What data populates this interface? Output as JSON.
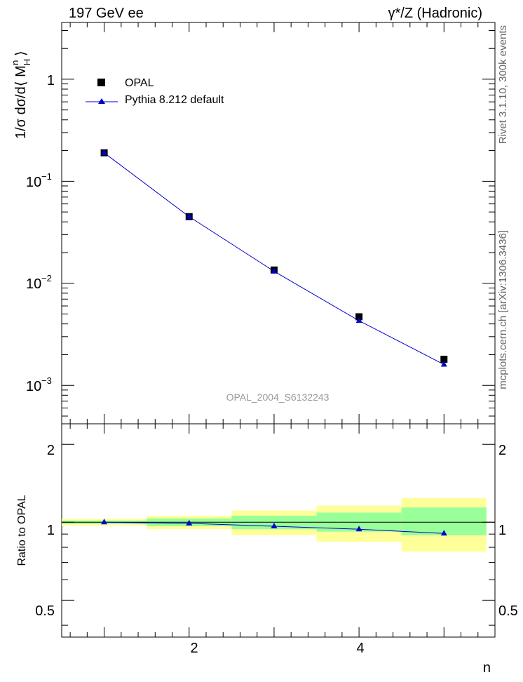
{
  "header": {
    "left": "197 GeV ee",
    "right_prefix": "γ*/Z (Hadronic)"
  },
  "side_labels": {
    "top": "Rivet 3.1.10,  300k events",
    "bottom": "mcplots.cern.ch [arXiv:1306.3436]"
  },
  "watermark": "OPAL_2004_S6132243",
  "legend": [
    {
      "label": "OPAL",
      "marker": "square",
      "color": "#000000"
    },
    {
      "label": "Pythia 8.212 default",
      "marker": "triangle",
      "color": "#0000cc"
    }
  ],
  "main_y_axis": {
    "label": "1/σ dσ/d⟨ M_H^n ⟩",
    "scale": "log",
    "ticks": [
      {
        "base": "10",
        "exp": "−3",
        "value": 0.001
      },
      {
        "base": "10",
        "exp": "−2",
        "value": 0.01
      },
      {
        "base": "10",
        "exp": "−1",
        "value": 0.1
      },
      {
        "base": "1",
        "exp": "",
        "value": 1
      }
    ]
  },
  "ratio_y_axis": {
    "label": "Ratio to OPAL",
    "ticks": [
      "0.5",
      "1",
      "2"
    ]
  },
  "x_axis": {
    "label": "n",
    "ticks": [
      "2",
      "4"
    ]
  },
  "chart_data": [
    {
      "type": "scatter",
      "panel": "main",
      "xlim": [
        0.5,
        5.6
      ],
      "ylim": [
        0.00042,
        3.6
      ],
      "yscale": "log",
      "ylabel": "1/σ dσ/d⟨ M_H^n ⟩",
      "series": [
        {
          "name": "OPAL",
          "x": [
            1,
            2,
            3,
            4,
            5
          ],
          "y": [
            0.19,
            0.045,
            0.0135,
            0.0047,
            0.0018
          ]
        },
        {
          "name": "Pythia 8.212 default",
          "x": [
            1,
            2,
            3,
            4,
            5
          ],
          "y": [
            0.19,
            0.045,
            0.0131,
            0.0043,
            0.0016
          ]
        }
      ]
    },
    {
      "type": "line",
      "panel": "ratio",
      "xlim": [
        0.5,
        5.6
      ],
      "ylim": [
        0.36,
        2.4
      ],
      "yscale": "log",
      "xlabel": "n",
      "ylabel": "Ratio to OPAL",
      "bins": [
        [
          0.5,
          1.5
        ],
        [
          1.5,
          2.5
        ],
        [
          2.5,
          3.5
        ],
        [
          3.5,
          4.5
        ],
        [
          4.5,
          5.5
        ]
      ],
      "band_yellow": [
        [
          0.97,
          1.03
        ],
        [
          0.94,
          1.06
        ],
        [
          0.89,
          1.11
        ],
        [
          0.84,
          1.16
        ],
        [
          0.77,
          1.24
        ]
      ],
      "band_green": [
        [
          0.985,
          1.015
        ],
        [
          0.965,
          1.035
        ],
        [
          0.94,
          1.06
        ],
        [
          0.92,
          1.09
        ],
        [
          0.89,
          1.14
        ]
      ],
      "series": [
        {
          "name": "Pythia 8.212 default",
          "x": [
            1,
            2,
            3,
            4,
            5
          ],
          "y": [
            1.0,
            0.99,
            0.965,
            0.94,
            0.905
          ]
        }
      ]
    }
  ],
  "colors": {
    "mc": "#0000cc",
    "data": "#000000",
    "band_yellow": "#ffff99",
    "band_green": "#99ff99",
    "side_text": "#666666",
    "watermark": "#999999"
  }
}
